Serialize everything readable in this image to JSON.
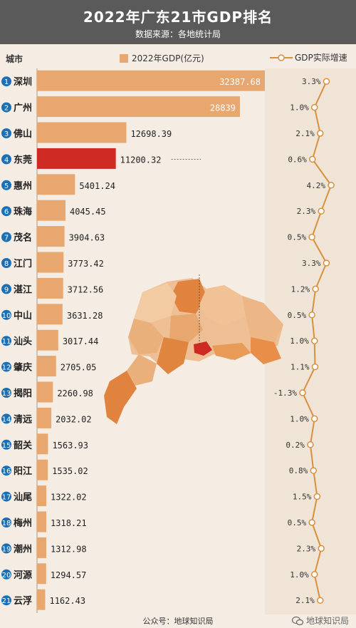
{
  "header": {
    "title": "2022年广东21市GDP排名",
    "subtitle": "数据来源：各地统计局"
  },
  "legend": {
    "city_header": "城市",
    "gdp_label": "2022年GDP(亿元)",
    "growth_label": "GDP实际增速"
  },
  "footer": {
    "source": "公众号：地球知识局",
    "brand": "地球知识局"
  },
  "colors": {
    "bar": "#e8a76f",
    "highlight_bar": "#cc2a22",
    "rank_badge": "#1a6fb5",
    "growth_line": "#d9903d",
    "header_bg": "#5a5a5a"
  },
  "chart_data": {
    "type": "bar",
    "title": "2022年广东21市GDP排名",
    "categories": [
      "深圳",
      "广州",
      "佛山",
      "东莞",
      "惠州",
      "珠海",
      "茂名",
      "江门",
      "湛江",
      "中山",
      "汕头",
      "肇庆",
      "揭阳",
      "清远",
      "韶关",
      "阳江",
      "汕尾",
      "梅州",
      "潮州",
      "河源",
      "云浮"
    ],
    "ranks": [
      "1",
      "2",
      "3",
      "4",
      "5",
      "6",
      "7",
      "8",
      "9",
      "10",
      "11",
      "12",
      "13",
      "14",
      "15",
      "16",
      "17",
      "18",
      "19",
      "20",
      "21"
    ],
    "series": [
      {
        "name": "2022年GDP(亿元)",
        "values": [
          32387.68,
          28839,
          12698.39,
          11200.32,
          5401.24,
          4045.45,
          3904.63,
          3773.42,
          3712.56,
          3631.28,
          3017.44,
          2705.05,
          2260.98,
          2032.02,
          1563.93,
          1535.02,
          1322.02,
          1318.21,
          1312.98,
          1294.57,
          1162.43
        ],
        "labels": [
          "32387.68",
          "28839",
          "12698.39",
          "11200.32",
          "5401.24",
          "4045.45",
          "3904.63",
          "3773.42",
          "3712.56",
          "3631.28",
          "3017.44",
          "2705.05",
          "2260.98",
          "2032.02",
          "1563.93",
          "1535.02",
          "1322.02",
          "1318.21",
          "1312.98",
          "1294.57",
          "1162.43"
        ]
      },
      {
        "name": "GDP实际增速",
        "values": [
          3.3,
          1.0,
          2.1,
          0.6,
          4.2,
          2.3,
          0.5,
          3.3,
          1.2,
          0.5,
          1.0,
          1.1,
          -1.3,
          1.0,
          0.2,
          0.8,
          1.5,
          0.5,
          2.3,
          1.0,
          2.1
        ],
        "labels": [
          "3.3%",
          "1.0%",
          "2.1%",
          "0.6%",
          "4.2%",
          "2.3%",
          "0.5%",
          "3.3%",
          "1.2%",
          "0.5%",
          "1.0%",
          "1.1%",
          "-1.3%",
          "1.0%",
          "0.2%",
          "0.8%",
          "1.5%",
          "0.5%",
          "2.3%",
          "1.0%",
          "2.1%"
        ]
      }
    ],
    "highlight": "东莞"
  }
}
